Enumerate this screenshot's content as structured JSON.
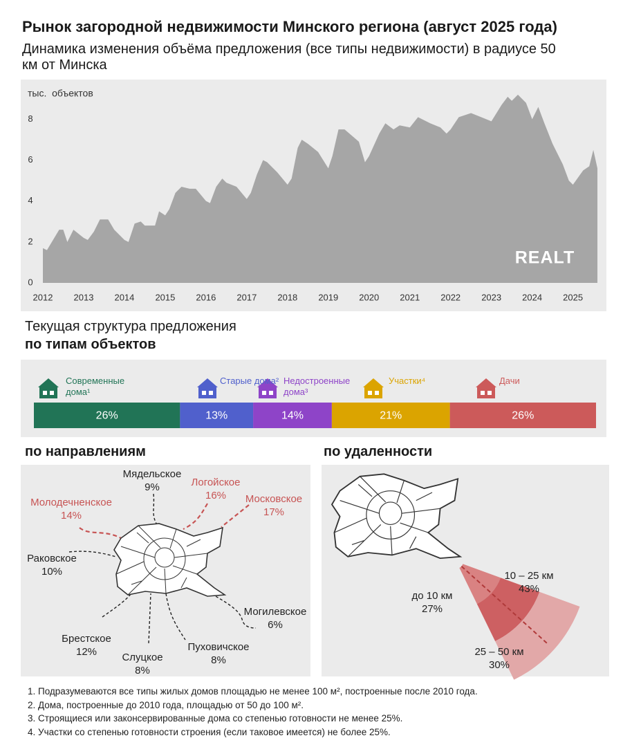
{
  "title": "Рынок загородной недвижимости Минского региона  (август 2025 года)",
  "subtitle": "Динамика изменения объёма предложения (все типы недвижимости) в радиусе 50 км от Минска",
  "sections": {
    "structure": "Текущая структура предложения",
    "by_type": "по типам объектов",
    "by_direction": "по направлениям",
    "by_distance": "по удаленности"
  },
  "chart_data": [
    {
      "type": "area",
      "y_label": "тыс.  объектов",
      "logo": "REALT",
      "color": "#a6a6a6",
      "x": [
        2012.0,
        2012.1,
        2012.25,
        2012.4,
        2012.5,
        2012.6,
        2012.75,
        2013.0,
        2013.1,
        2013.25,
        2013.4,
        2013.6,
        2013.75,
        2014.0,
        2014.1,
        2014.25,
        2014.4,
        2014.5,
        2014.75,
        2014.85,
        2015.0,
        2015.1,
        2015.25,
        2015.4,
        2015.6,
        2015.75,
        2016.0,
        2016.1,
        2016.25,
        2016.4,
        2016.5,
        2016.75,
        2017.0,
        2017.1,
        2017.25,
        2017.4,
        2017.5,
        2017.75,
        2018.0,
        2018.1,
        2018.25,
        2018.35,
        2018.5,
        2018.75,
        2019.0,
        2019.1,
        2019.25,
        2019.4,
        2019.75,
        2019.9,
        2020.0,
        2020.25,
        2020.4,
        2020.6,
        2020.75,
        2021.0,
        2021.2,
        2021.5,
        2021.75,
        2021.9,
        2022.0,
        2022.2,
        2022.5,
        2022.75,
        2023.0,
        2023.25,
        2023.4,
        2023.5,
        2023.65,
        2023.85,
        2024.0,
        2024.15,
        2024.3,
        2024.5,
        2024.75,
        2024.9,
        2025.0,
        2025.25,
        2025.4,
        2025.5,
        2025.6
      ],
      "values": [
        1.7,
        1.6,
        2.1,
        2.6,
        2.6,
        2.0,
        2.6,
        2.2,
        2.1,
        2.5,
        3.1,
        3.1,
        2.6,
        2.1,
        2.0,
        2.9,
        3.0,
        2.8,
        2.8,
        3.5,
        3.3,
        3.6,
        4.4,
        4.7,
        4.6,
        4.6,
        4.0,
        3.9,
        4.7,
        5.1,
        4.9,
        4.7,
        4.1,
        4.4,
        5.3,
        6.0,
        5.9,
        5.4,
        4.8,
        5.1,
        6.6,
        7.0,
        6.8,
        6.4,
        5.6,
        6.2,
        7.5,
        7.5,
        6.9,
        5.9,
        6.2,
        7.3,
        7.8,
        7.5,
        7.7,
        7.6,
        8.1,
        7.8,
        7.6,
        7.3,
        7.5,
        8.1,
        8.3,
        8.1,
        7.9,
        8.7,
        9.1,
        8.9,
        9.2,
        8.8,
        8.0,
        8.6,
        7.8,
        6.8,
        5.8,
        5.0,
        4.8,
        5.5,
        5.7,
        6.5,
        5.6
      ],
      "xlim": [
        2012,
        2025.6
      ],
      "ylim": [
        0,
        9.5
      ],
      "xticks": [
        2012,
        2013,
        2014,
        2015,
        2016,
        2017,
        2018,
        2019,
        2020,
        2021,
        2022,
        2023,
        2024,
        2025
      ],
      "yticks": [
        0,
        2,
        4,
        6,
        8
      ]
    },
    {
      "type": "stacked_bar",
      "categories": [
        "Современные дома¹",
        "Старые дома²",
        "Недостроенные дома³",
        "Участки⁴",
        "Дачи"
      ],
      "values": [
        26,
        13,
        14,
        21,
        26
      ],
      "value_labels": [
        "26%",
        "13%",
        "14%",
        "21%",
        "26%"
      ],
      "colors": [
        "#217456",
        "#5060cc",
        "#8e44c8",
        "#dba400",
        "#cc5a5a"
      ],
      "xlim": [
        0,
        100
      ]
    },
    {
      "type": "directions",
      "categories": [
        "Мядельское",
        "Логойское",
        "Московское",
        "Молодечненское",
        "Раковское",
        "Могилевское",
        "Брестское",
        "Слуцкое",
        "Пуховичское"
      ],
      "values": [
        9,
        16,
        17,
        14,
        10,
        6,
        12,
        8,
        8
      ],
      "value_labels": [
        "9%",
        "16%",
        "17%",
        "14%",
        "10%",
        "6%",
        "12%",
        "8%",
        "8%"
      ],
      "colors": [
        "#222222",
        "#c75454",
        "#c75454",
        "#c75454",
        "#222222",
        "#222222",
        "#222222",
        "#222222",
        "#222222"
      ]
    },
    {
      "type": "distance",
      "categories": [
        "до 10 км",
        "10 – 25 км",
        "25 – 50 км"
      ],
      "values": [
        27,
        43,
        30
      ],
      "value_labels": [
        "27%",
        "43%",
        "30%"
      ],
      "colors": [
        "#d98282",
        "#cd6062",
        "#e2a8a8"
      ]
    }
  ],
  "footnotes": [
    "1. Подразумеваются все типы жилых домов площадью не менее 100 м², построенные после 2010 года.",
    "2. Дома, построенные до 2010 года, площадью от 50 до 100 м².",
    "3. Строящиеся или законсервированные дома со степенью готовности не менее 25%.",
    "4. Участки со степенью готовности строения (если таковое имеется) не более 25%."
  ]
}
